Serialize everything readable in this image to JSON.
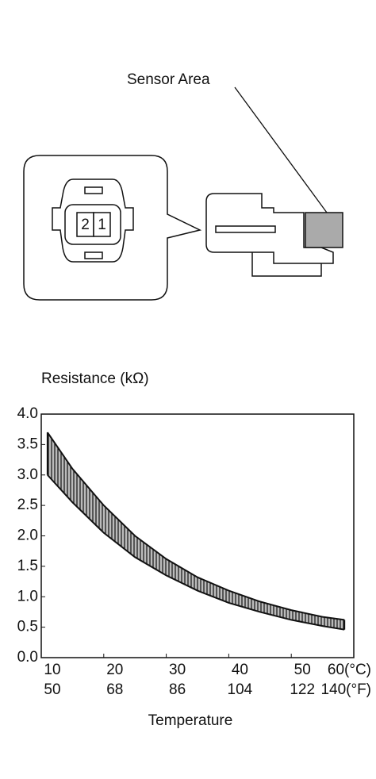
{
  "diagram": {
    "label": "Sensor Area",
    "pins": [
      "2",
      "1"
    ]
  },
  "chart_data": {
    "type": "band",
    "title": "Resistance (kΩ)",
    "x_label": "Temperature",
    "x": [
      11,
      15,
      20,
      25,
      30,
      35,
      40,
      45,
      50,
      55,
      58.5
    ],
    "series": [
      {
        "values": [
          3.7,
          3.1,
          2.5,
          2.0,
          1.62,
          1.32,
          1.1,
          0.92,
          0.78,
          0.67,
          0.62
        ]
      },
      {
        "values": [
          3.0,
          2.55,
          2.05,
          1.65,
          1.35,
          1.1,
          0.9,
          0.75,
          0.62,
          0.52,
          0.46
        ]
      }
    ],
    "color": "#555555",
    "xlim": [
      10,
      60
    ],
    "xticks": [
      10,
      20,
      30,
      40,
      50,
      {
        "value": 60,
        "label": "60(°C)"
      }
    ],
    "x2lim": [
      50,
      140
    ],
    "x2ticks": [
      50,
      68,
      86,
      104,
      122,
      {
        "value": 140,
        "label": "140(°F)"
      }
    ],
    "ylim": [
      0,
      4
    ],
    "yticks": [
      {
        "value": 0,
        "label": "0.0"
      },
      0.5,
      {
        "value": 1,
        "label": "1.0"
      },
      1.5,
      {
        "value": 2,
        "label": "2.0"
      },
      2.5,
      {
        "value": 3,
        "label": "3.0"
      },
      3.5,
      {
        "value": 4,
        "label": "4.0"
      }
    ]
  }
}
